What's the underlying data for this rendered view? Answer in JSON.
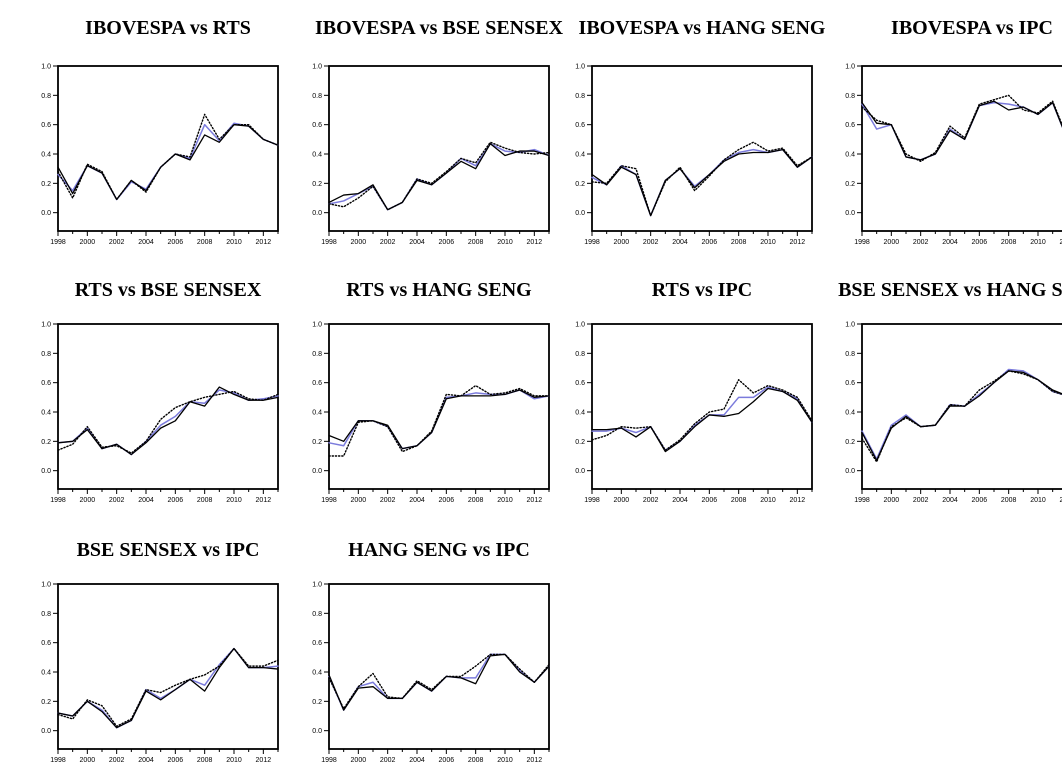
{
  "page": {
    "background": "#ffffff"
  },
  "colors": {
    "line_black": "#000000",
    "line_blue": "#7b7bdc",
    "title_text": "#000000",
    "axis": "#000000"
  },
  "axis": {
    "y_tick_labels": [
      "1.0",
      "0.8",
      "0.6",
      "0.4",
      "0.2",
      "0.0"
    ],
    "x_tick_labels": [
      "1998",
      "2000",
      "2002",
      "2004",
      "2006",
      "2008",
      "2010",
      "2012"
    ],
    "x_range": [
      1998,
      2013
    ],
    "ylim": [
      0.0,
      1.0
    ]
  },
  "chart_data": [
    {
      "type": "line",
      "title": "IBOVESPA vs RTS",
      "x": [
        1998,
        1999,
        2000,
        2001,
        2002,
        2003,
        2004,
        2005,
        2006,
        2007,
        2008,
        2009,
        2010,
        2011,
        2012,
        2013
      ],
      "ylim": [
        0.0,
        1.0
      ],
      "xlabel": "",
      "ylabel": "",
      "grid": false,
      "legend": "none",
      "series": [
        {
          "name": "solid-black",
          "values": [
            0.31,
            0.13,
            0.32,
            0.27,
            0.09,
            0.22,
            0.15,
            0.31,
            0.4,
            0.36,
            0.53,
            0.48,
            0.6,
            0.59,
            0.5,
            0.46
          ]
        },
        {
          "name": "dotted-black",
          "values": [
            0.28,
            0.1,
            0.33,
            0.28,
            0.09,
            0.22,
            0.14,
            0.31,
            0.4,
            0.38,
            0.67,
            0.5,
            0.6,
            0.6,
            0.5,
            0.46
          ]
        },
        {
          "name": "solid-blue",
          "values": [
            0.26,
            0.15,
            0.32,
            0.27,
            0.09,
            0.21,
            0.16,
            0.31,
            0.4,
            0.37,
            0.6,
            0.49,
            0.61,
            0.59,
            0.5,
            0.46
          ]
        }
      ]
    },
    {
      "type": "line",
      "title": "IBOVESPA vs BSE SENSEX",
      "x": [
        1998,
        1999,
        2000,
        2001,
        2002,
        2003,
        2004,
        2005,
        2006,
        2007,
        2008,
        2009,
        2010,
        2011,
        2012,
        2013
      ],
      "ylim": [
        0.0,
        1.0
      ],
      "xlabel": "",
      "ylabel": "",
      "grid": false,
      "legend": "none",
      "series": [
        {
          "name": "solid-black",
          "values": [
            0.07,
            0.12,
            0.13,
            0.19,
            0.02,
            0.07,
            0.22,
            0.19,
            0.27,
            0.35,
            0.3,
            0.47,
            0.39,
            0.42,
            0.42,
            0.39
          ]
        },
        {
          "name": "dotted-black",
          "values": [
            0.06,
            0.04,
            0.1,
            0.18,
            0.02,
            0.07,
            0.23,
            0.2,
            0.28,
            0.37,
            0.34,
            0.48,
            0.44,
            0.41,
            0.4,
            0.41
          ]
        },
        {
          "name": "solid-blue",
          "values": [
            0.06,
            0.08,
            0.13,
            0.18,
            0.02,
            0.07,
            0.23,
            0.19,
            0.27,
            0.37,
            0.32,
            0.47,
            0.42,
            0.41,
            0.43,
            0.39
          ]
        }
      ]
    },
    {
      "type": "line",
      "title": "IBOVESPA vs HANG SENG",
      "x": [
        1998,
        1999,
        2000,
        2001,
        2002,
        2003,
        2004,
        2005,
        2006,
        2007,
        2008,
        2009,
        2010,
        2011,
        2012,
        2013
      ],
      "ylim": [
        0.0,
        1.0
      ],
      "xlabel": "",
      "ylabel": "",
      "grid": false,
      "legend": "none",
      "series": [
        {
          "name": "solid-black",
          "values": [
            0.26,
            0.19,
            0.31,
            0.26,
            -0.02,
            0.22,
            0.3,
            0.17,
            0.26,
            0.35,
            0.4,
            0.41,
            0.41,
            0.43,
            0.31,
            0.38
          ]
        },
        {
          "name": "dotted-black",
          "values": [
            0.21,
            0.2,
            0.32,
            0.3,
            -0.02,
            0.21,
            0.31,
            0.15,
            0.25,
            0.36,
            0.43,
            0.48,
            0.42,
            0.44,
            0.32,
            0.38
          ]
        },
        {
          "name": "solid-blue",
          "values": [
            0.24,
            0.19,
            0.32,
            0.26,
            -0.02,
            0.22,
            0.3,
            0.18,
            0.26,
            0.36,
            0.41,
            0.43,
            0.41,
            0.43,
            0.31,
            0.38
          ]
        }
      ]
    },
    {
      "type": "line",
      "title": "IBOVESPA vs IPC",
      "x": [
        1998,
        1999,
        2000,
        2001,
        2002,
        2003,
        2004,
        2005,
        2006,
        2007,
        2008,
        2009,
        2010,
        2011,
        2012,
        2013
      ],
      "ylim": [
        0.0,
        1.0
      ],
      "xlabel": "",
      "ylabel": "",
      "grid": false,
      "legend": "none",
      "series": [
        {
          "name": "solid-black",
          "values": [
            0.75,
            0.61,
            0.6,
            0.38,
            0.36,
            0.4,
            0.56,
            0.5,
            0.73,
            0.76,
            0.7,
            0.72,
            0.67,
            0.75,
            0.5,
            0.41
          ]
        },
        {
          "name": "dotted-black",
          "values": [
            0.72,
            0.63,
            0.6,
            0.4,
            0.35,
            0.41,
            0.59,
            0.51,
            0.74,
            0.77,
            0.8,
            0.7,
            0.68,
            0.76,
            0.51,
            0.4
          ]
        },
        {
          "name": "solid-blue",
          "values": [
            0.74,
            0.57,
            0.6,
            0.38,
            0.36,
            0.4,
            0.57,
            0.5,
            0.73,
            0.75,
            0.74,
            0.72,
            0.67,
            0.75,
            0.5,
            0.41
          ]
        }
      ]
    },
    {
      "type": "line",
      "title": "RTS vs BSE SENSEX",
      "x": [
        1998,
        1999,
        2000,
        2001,
        2002,
        2003,
        2004,
        2005,
        2006,
        2007,
        2008,
        2009,
        2010,
        2011,
        2012,
        2013
      ],
      "ylim": [
        0.0,
        1.0
      ],
      "xlabel": "",
      "ylabel": "",
      "grid": false,
      "legend": "none",
      "series": [
        {
          "name": "solid-black",
          "values": [
            0.19,
            0.2,
            0.28,
            0.15,
            0.18,
            0.11,
            0.19,
            0.29,
            0.34,
            0.47,
            0.44,
            0.57,
            0.52,
            0.48,
            0.48,
            0.5
          ]
        },
        {
          "name": "dotted-black",
          "values": [
            0.14,
            0.18,
            0.3,
            0.16,
            0.17,
            0.12,
            0.2,
            0.35,
            0.43,
            0.47,
            0.5,
            0.52,
            0.54,
            0.49,
            0.48,
            0.52
          ]
        },
        {
          "name": "solid-blue",
          "values": [
            0.19,
            0.2,
            0.29,
            0.15,
            0.18,
            0.11,
            0.2,
            0.31,
            0.37,
            0.47,
            0.46,
            0.55,
            0.53,
            0.48,
            0.49,
            0.51
          ]
        }
      ]
    },
    {
      "type": "line",
      "title": "RTS vs HANG SENG",
      "x": [
        1998,
        1999,
        2000,
        2001,
        2002,
        2003,
        2004,
        2005,
        2006,
        2007,
        2008,
        2009,
        2010,
        2011,
        2012,
        2013
      ],
      "ylim": [
        0.0,
        1.0
      ],
      "xlabel": "",
      "ylabel": "",
      "grid": false,
      "legend": "none",
      "series": [
        {
          "name": "solid-black",
          "values": [
            0.24,
            0.2,
            0.34,
            0.34,
            0.31,
            0.15,
            0.17,
            0.26,
            0.49,
            0.51,
            0.51,
            0.51,
            0.52,
            0.55,
            0.5,
            0.51
          ]
        },
        {
          "name": "dotted-black",
          "values": [
            0.1,
            0.1,
            0.33,
            0.34,
            0.3,
            0.13,
            0.17,
            0.27,
            0.52,
            0.51,
            0.58,
            0.52,
            0.53,
            0.56,
            0.51,
            0.51
          ]
        },
        {
          "name": "solid-blue",
          "values": [
            0.19,
            0.17,
            0.34,
            0.34,
            0.3,
            0.15,
            0.17,
            0.26,
            0.5,
            0.51,
            0.53,
            0.52,
            0.52,
            0.55,
            0.49,
            0.51
          ]
        }
      ]
    },
    {
      "type": "line",
      "title": "RTS vs IPC",
      "x": [
        1998,
        1999,
        2000,
        2001,
        2002,
        2003,
        2004,
        2005,
        2006,
        2007,
        2008,
        2009,
        2010,
        2011,
        2012,
        2013
      ],
      "ylim": [
        0.0,
        1.0
      ],
      "xlabel": "",
      "ylabel": "",
      "grid": false,
      "legend": "none",
      "series": [
        {
          "name": "solid-black",
          "values": [
            0.28,
            0.28,
            0.29,
            0.23,
            0.3,
            0.13,
            0.2,
            0.3,
            0.38,
            0.37,
            0.39,
            0.47,
            0.56,
            0.54,
            0.48,
            0.33
          ]
        },
        {
          "name": "dotted-black",
          "values": [
            0.21,
            0.24,
            0.3,
            0.29,
            0.3,
            0.14,
            0.21,
            0.32,
            0.4,
            0.42,
            0.62,
            0.53,
            0.58,
            0.55,
            0.5,
            0.34
          ]
        },
        {
          "name": "solid-blue",
          "values": [
            0.27,
            0.27,
            0.29,
            0.26,
            0.3,
            0.14,
            0.2,
            0.31,
            0.38,
            0.38,
            0.5,
            0.5,
            0.57,
            0.54,
            0.49,
            0.33
          ]
        }
      ]
    },
    {
      "type": "line",
      "title": "BSE SENSEX vs HANG SENG",
      "x": [
        1998,
        1999,
        2000,
        2001,
        2002,
        2003,
        2004,
        2005,
        2006,
        2007,
        2008,
        2009,
        2010,
        2011,
        2012,
        2013
      ],
      "ylim": [
        0.0,
        1.0
      ],
      "xlabel": "",
      "ylabel": "",
      "grid": false,
      "legend": "none",
      "series": [
        {
          "name": "solid-black",
          "values": [
            0.26,
            0.07,
            0.29,
            0.37,
            0.3,
            0.31,
            0.44,
            0.44,
            0.51,
            0.6,
            0.68,
            0.67,
            0.62,
            0.55,
            0.51,
            0.54
          ]
        },
        {
          "name": "dotted-black",
          "values": [
            0.22,
            0.06,
            0.3,
            0.36,
            0.3,
            0.31,
            0.45,
            0.44,
            0.55,
            0.61,
            0.68,
            0.66,
            0.62,
            0.54,
            0.51,
            0.55
          ]
        },
        {
          "name": "solid-blue",
          "values": [
            0.27,
            0.08,
            0.31,
            0.38,
            0.3,
            0.31,
            0.45,
            0.44,
            0.52,
            0.6,
            0.69,
            0.68,
            0.62,
            0.54,
            0.51,
            0.56
          ]
        }
      ]
    },
    {
      "type": "line",
      "title": "BSE SENSEX vs IPC",
      "x": [
        1998,
        1999,
        2000,
        2001,
        2002,
        2003,
        2004,
        2005,
        2006,
        2007,
        2008,
        2009,
        2010,
        2011,
        2012,
        2013
      ],
      "ylim": [
        0.0,
        1.0
      ],
      "xlabel": "",
      "ylabel": "",
      "grid": false,
      "legend": "none",
      "series": [
        {
          "name": "solid-black",
          "values": [
            0.12,
            0.1,
            0.2,
            0.13,
            0.02,
            0.07,
            0.27,
            0.21,
            0.28,
            0.35,
            0.27,
            0.43,
            0.56,
            0.43,
            0.43,
            0.42
          ]
        },
        {
          "name": "dotted-black",
          "values": [
            0.11,
            0.08,
            0.21,
            0.17,
            0.03,
            0.08,
            0.28,
            0.26,
            0.31,
            0.35,
            0.38,
            0.44,
            0.56,
            0.44,
            0.44,
            0.48
          ]
        },
        {
          "name": "solid-blue",
          "values": [
            0.12,
            0.1,
            0.2,
            0.14,
            0.02,
            0.07,
            0.28,
            0.22,
            0.28,
            0.35,
            0.31,
            0.45,
            0.56,
            0.43,
            0.43,
            0.44
          ]
        }
      ]
    },
    {
      "type": "line",
      "title": "HANG SENG vs IPC",
      "x": [
        1998,
        1999,
        2000,
        2001,
        2002,
        2003,
        2004,
        2005,
        2006,
        2007,
        2008,
        2009,
        2010,
        2011,
        2012,
        2013
      ],
      "ylim": [
        0.0,
        1.0
      ],
      "xlabel": "",
      "ylabel": "",
      "grid": false,
      "legend": "none",
      "series": [
        {
          "name": "solid-black",
          "values": [
            0.38,
            0.14,
            0.29,
            0.3,
            0.22,
            0.22,
            0.33,
            0.27,
            0.37,
            0.36,
            0.32,
            0.51,
            0.52,
            0.4,
            0.33,
            0.44
          ]
        },
        {
          "name": "dotted-black",
          "values": [
            0.36,
            0.15,
            0.3,
            0.39,
            0.23,
            0.22,
            0.34,
            0.28,
            0.37,
            0.37,
            0.44,
            0.52,
            0.52,
            0.42,
            0.33,
            0.45
          ]
        },
        {
          "name": "solid-blue",
          "values": [
            0.37,
            0.14,
            0.3,
            0.33,
            0.22,
            0.22,
            0.33,
            0.27,
            0.37,
            0.36,
            0.36,
            0.52,
            0.52,
            0.41,
            0.33,
            0.44
          ]
        }
      ]
    }
  ]
}
